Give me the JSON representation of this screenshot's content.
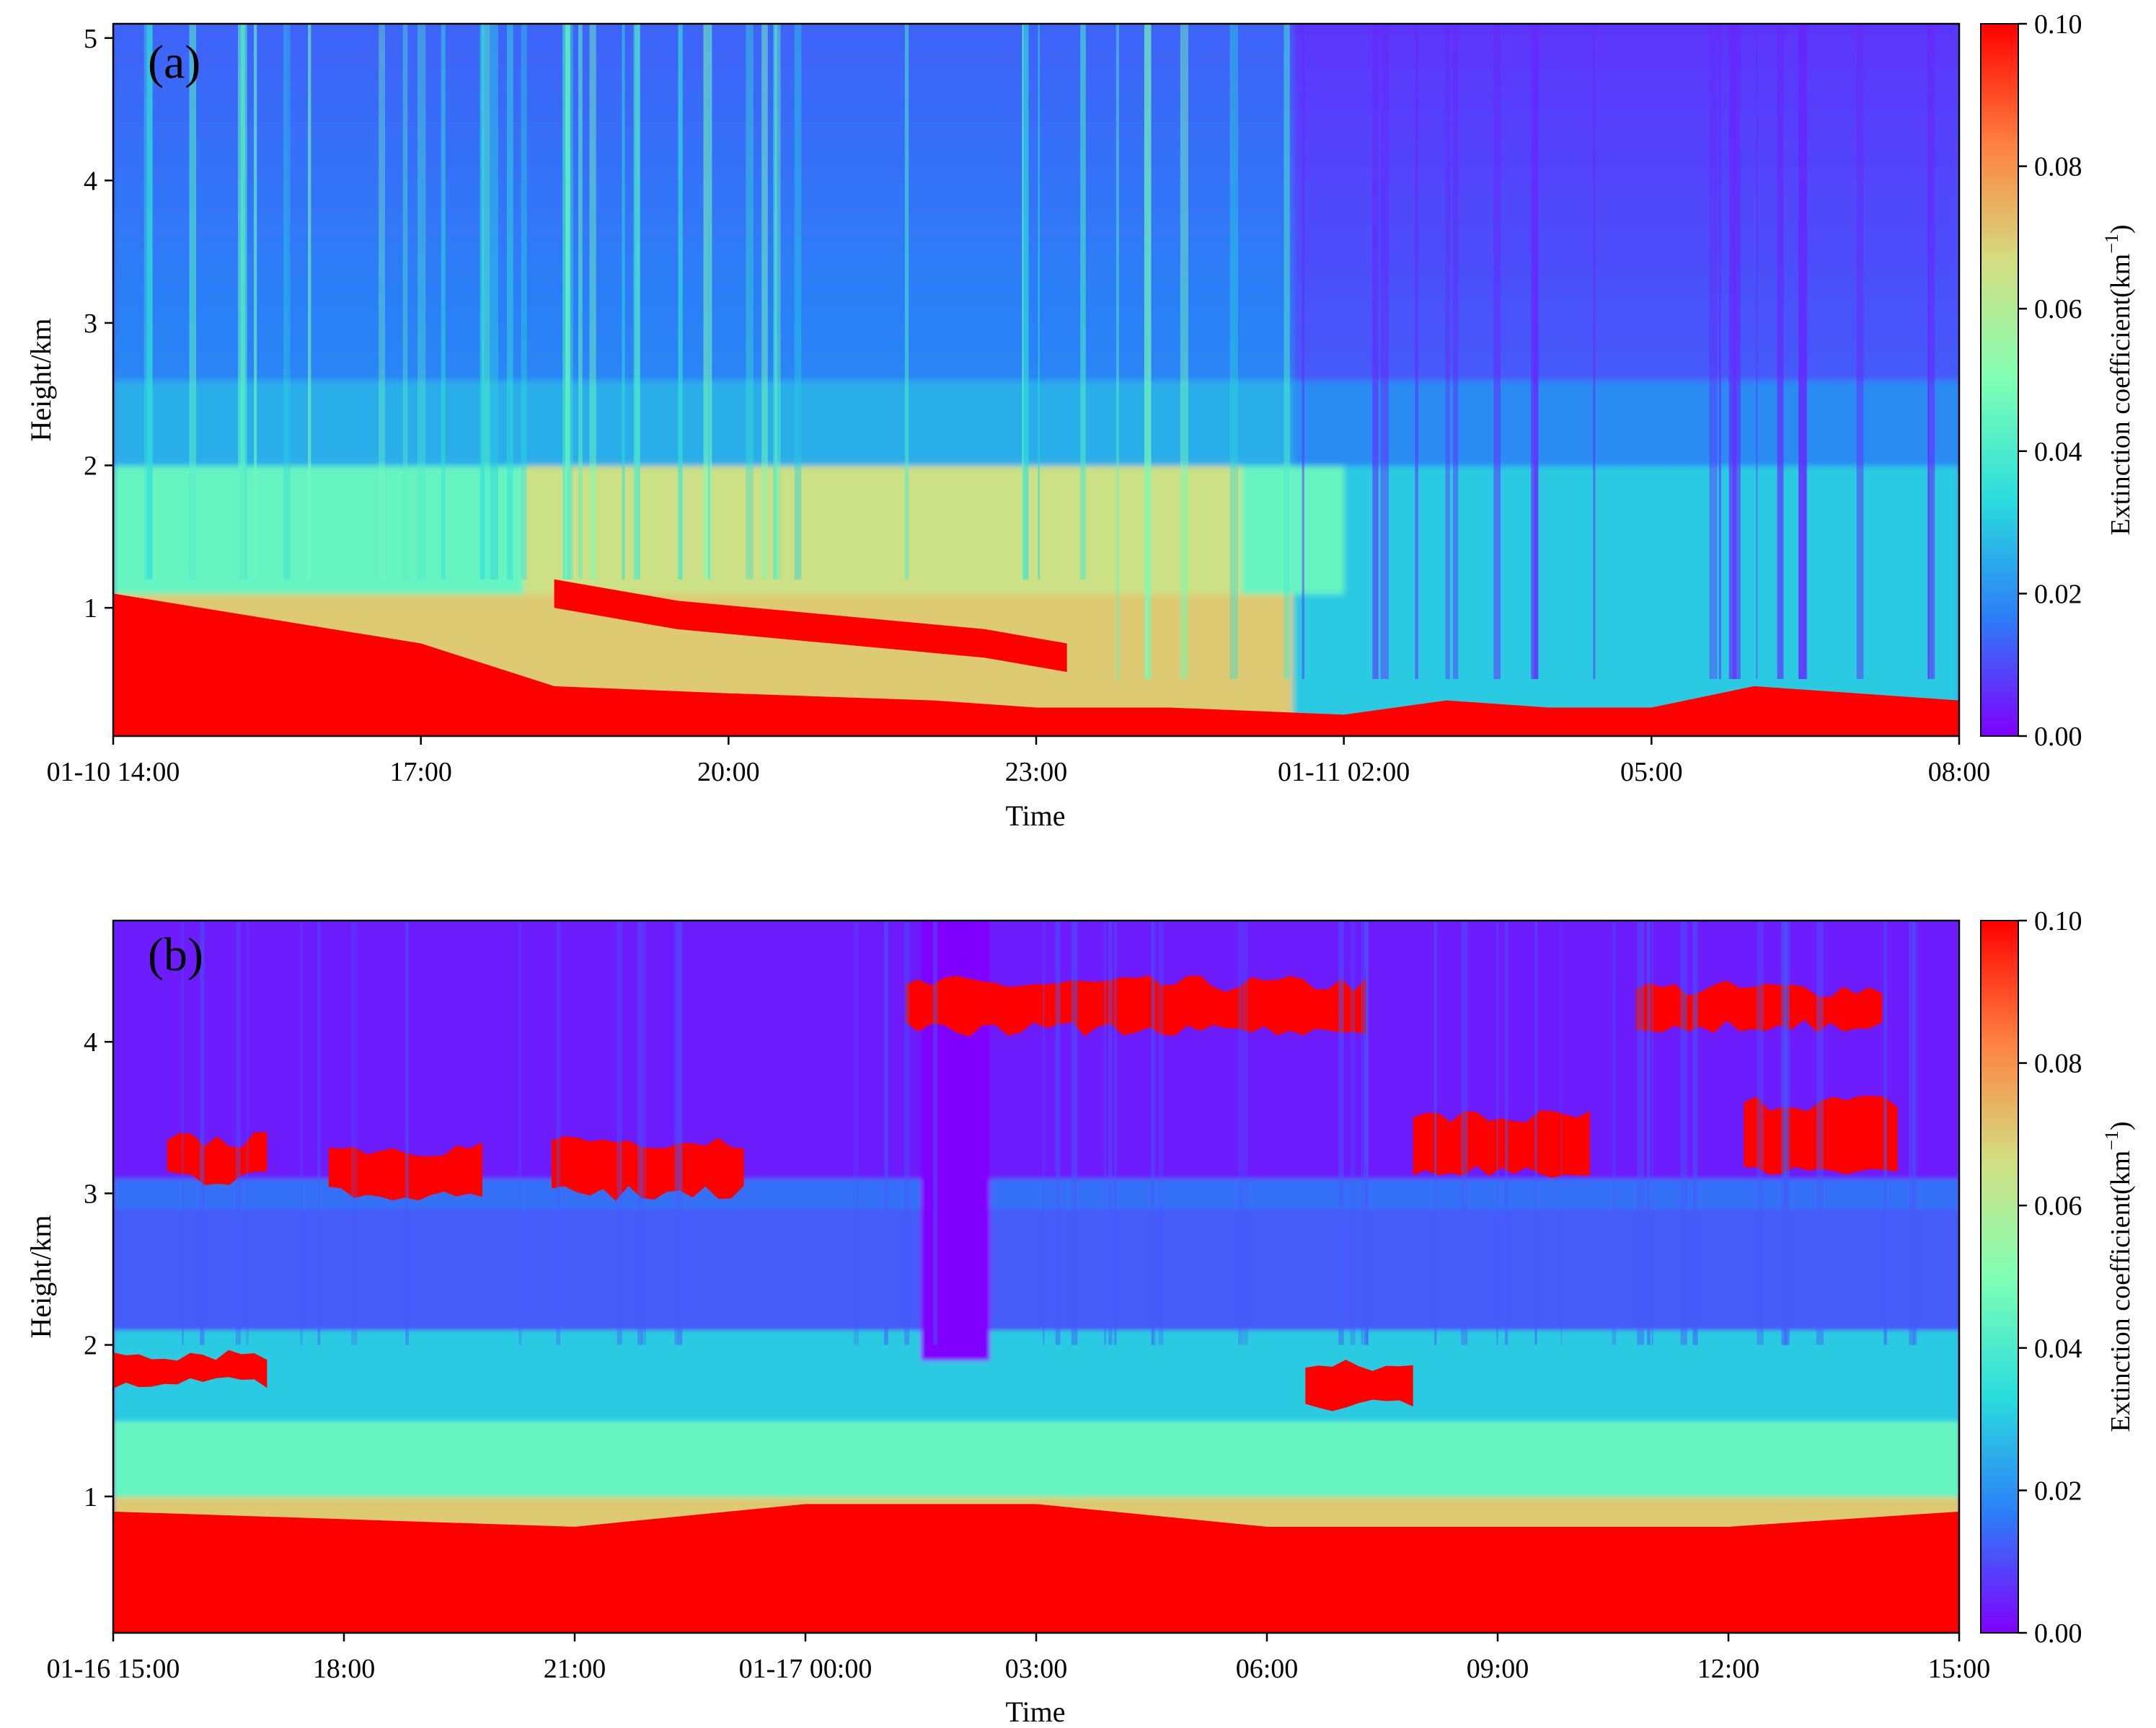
{
  "chart_data": [
    {
      "type": "heatmap",
      "panel_label": "(a)",
      "xlabel": "Time",
      "ylabel": "Height/km",
      "x_tick_labels": [
        "01-10 14:00",
        "17:00",
        "20:00",
        "23:00",
        "01-11 02:00",
        "05:00",
        "08:00"
      ],
      "x_range": [
        "01-10 14:00",
        "01-11 08:00"
      ],
      "y_ticks": [
        1,
        2,
        3,
        4,
        5
      ],
      "ylim": [
        0.1,
        5.1
      ],
      "colorbar": {
        "label": "Extinction coefficient(km⁻¹)",
        "label_main": "Extinction coefficient(km",
        "label_sup": "−1",
        "label_end": ")",
        "ticks": [
          "0.00",
          "0.02",
          "0.04",
          "0.06",
          "0.08",
          "0.10"
        ],
        "range": [
          0.0,
          0.1
        ],
        "colormap": "rainbow",
        "colors": [
          "#8000ff",
          "#2c7ef7",
          "#2adddd",
          "#80ffb4",
          "#d4dd80",
          "#ff7f40",
          "#ff0000"
        ]
      },
      "layers": [
        {
          "description": "aerosol",
          "t_hours": [
            0,
            3,
            4.3,
            6,
            8,
            9,
            10.3,
            12,
            13,
            14,
            15,
            16,
            18
          ],
          "top_km": [
            1.1,
            0.75,
            0.45,
            0.4,
            0.35,
            0.3,
            0.3,
            0.25,
            0.35,
            0.3,
            0.3,
            0.45,
            0.35
          ],
          "value": 0.1
        },
        {
          "description": "elevated",
          "t_hours": [
            4.3,
            5.5,
            7,
            8.5,
            9.3
          ],
          "top_km": [
            1.2,
            1.05,
            0.95,
            0.85,
            0.75
          ],
          "value": 0.1
        }
      ]
    },
    {
      "type": "heatmap",
      "panel_label": "(b)",
      "xlabel": "Time",
      "ylabel": "Height/km",
      "x_tick_labels": [
        "01-16 15:00",
        "18:00",
        "21:00",
        "01-17 00:00",
        "03:00",
        "06:00",
        "09:00",
        "12:00",
        "15:00"
      ],
      "x_range": [
        "01-16 15:00",
        "01-17 15:00"
      ],
      "y_ticks": [
        1,
        2,
        3,
        4
      ],
      "ylim": [
        0.1,
        4.8
      ],
      "colorbar": {
        "label": "Extinction coefficient(km⁻¹)",
        "label_main": "Extinction coefficient(km",
        "label_sup": "−1",
        "label_end": ")",
        "ticks": [
          "0.00",
          "0.02",
          "0.04",
          "0.06",
          "0.08",
          "0.10"
        ],
        "range": [
          0.0,
          0.1
        ],
        "colormap": "rainbow",
        "colors": [
          "#8000ff",
          "#2c7ef7",
          "#2adddd",
          "#80ffb4",
          "#d4dd80",
          "#ff7f40",
          "#ff0000"
        ]
      },
      "layers": [
        {
          "description": "boundary layer",
          "t_hours": [
            0,
            6,
            9,
            12,
            15,
            18,
            21,
            24
          ],
          "top_km": [
            0.9,
            0.8,
            0.95,
            0.95,
            0.8,
            0.8,
            0.8,
            0.9
          ],
          "value": 0.1
        },
        {
          "description": "cloud top",
          "t_hours": [
            10.3,
            12,
            14,
            16,
            16.3,
            21,
            23,
            24
          ],
          "top_km": [
            4.35,
            4.3,
            4.25,
            4.15,
            4.1,
            4.3,
            4.15,
            4.2
          ],
          "value": 0.1
        },
        {
          "description": "cloud mid",
          "t_hours": [
            0.7,
            2,
            3,
            4,
            6,
            7,
            17,
            18.5,
            20.5,
            22
          ],
          "top_km": [
            3.15,
            3.7,
            3.3,
            3.2,
            3.2,
            3.05,
            3.4,
            3.25,
            3.2,
            3.4
          ],
          "value": 0.1
        }
      ]
    }
  ]
}
